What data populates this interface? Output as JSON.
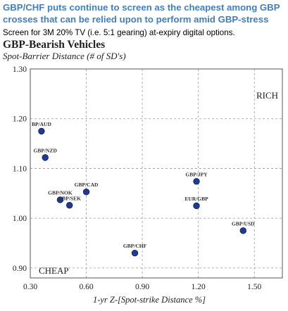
{
  "headline": "GBP/CHF puts continue to screen as the cheapest among GBP crosses that can be relied upon to perform amid GBP-stress",
  "subline": "Screen for 3M 20% TV (i.e. 5:1 gearing) at-expiry digital options.",
  "chart_data": {
    "type": "scatter",
    "title": "GBP-Bearish Vehicles",
    "ylabel": "Spot-Barrier Distance (# of SD's)",
    "xlabel": "1-yr Z-[Spot-strike Distance %]",
    "xlim": [
      0.3,
      1.65
    ],
    "ylim": [
      0.88,
      1.3
    ],
    "x_ticks": [
      0.3,
      0.6,
      0.9,
      1.2,
      1.5
    ],
    "x_tick_labels": [
      "0.30",
      "0.60",
      "0.90",
      "1.20",
      "1.50"
    ],
    "y_ticks": [
      0.9,
      1.0,
      1.1,
      1.2,
      1.3
    ],
    "y_tick_labels": [
      "0.90",
      "1.00",
      "1.10",
      "1.20",
      "1.30"
    ],
    "grid": true,
    "marker_color": "#1f3a93",
    "annotations": {
      "top_right": "RICH",
      "bottom_left": "CHEAP"
    },
    "points": [
      {
        "label": "BP/AUD",
        "x": 0.36,
        "y": 1.175
      },
      {
        "label": "GBP/NZD",
        "x": 0.38,
        "y": 1.122
      },
      {
        "label": "GBP/CAD",
        "x": 0.6,
        "y": 1.053
      },
      {
        "label": "GBP/NOK",
        "x": 0.46,
        "y": 1.037
      },
      {
        "label": "GBP/SEK",
        "x": 0.51,
        "y": 1.026
      },
      {
        "label": "GBP/CHF",
        "x": 0.86,
        "y": 0.93
      },
      {
        "label": "GBP/JPY",
        "x": 1.19,
        "y": 1.074
      },
      {
        "label": "EUR/GBP",
        "x": 1.19,
        "y": 1.025
      },
      {
        "label": "GBP/USD",
        "x": 1.44,
        "y": 0.975
      }
    ]
  }
}
